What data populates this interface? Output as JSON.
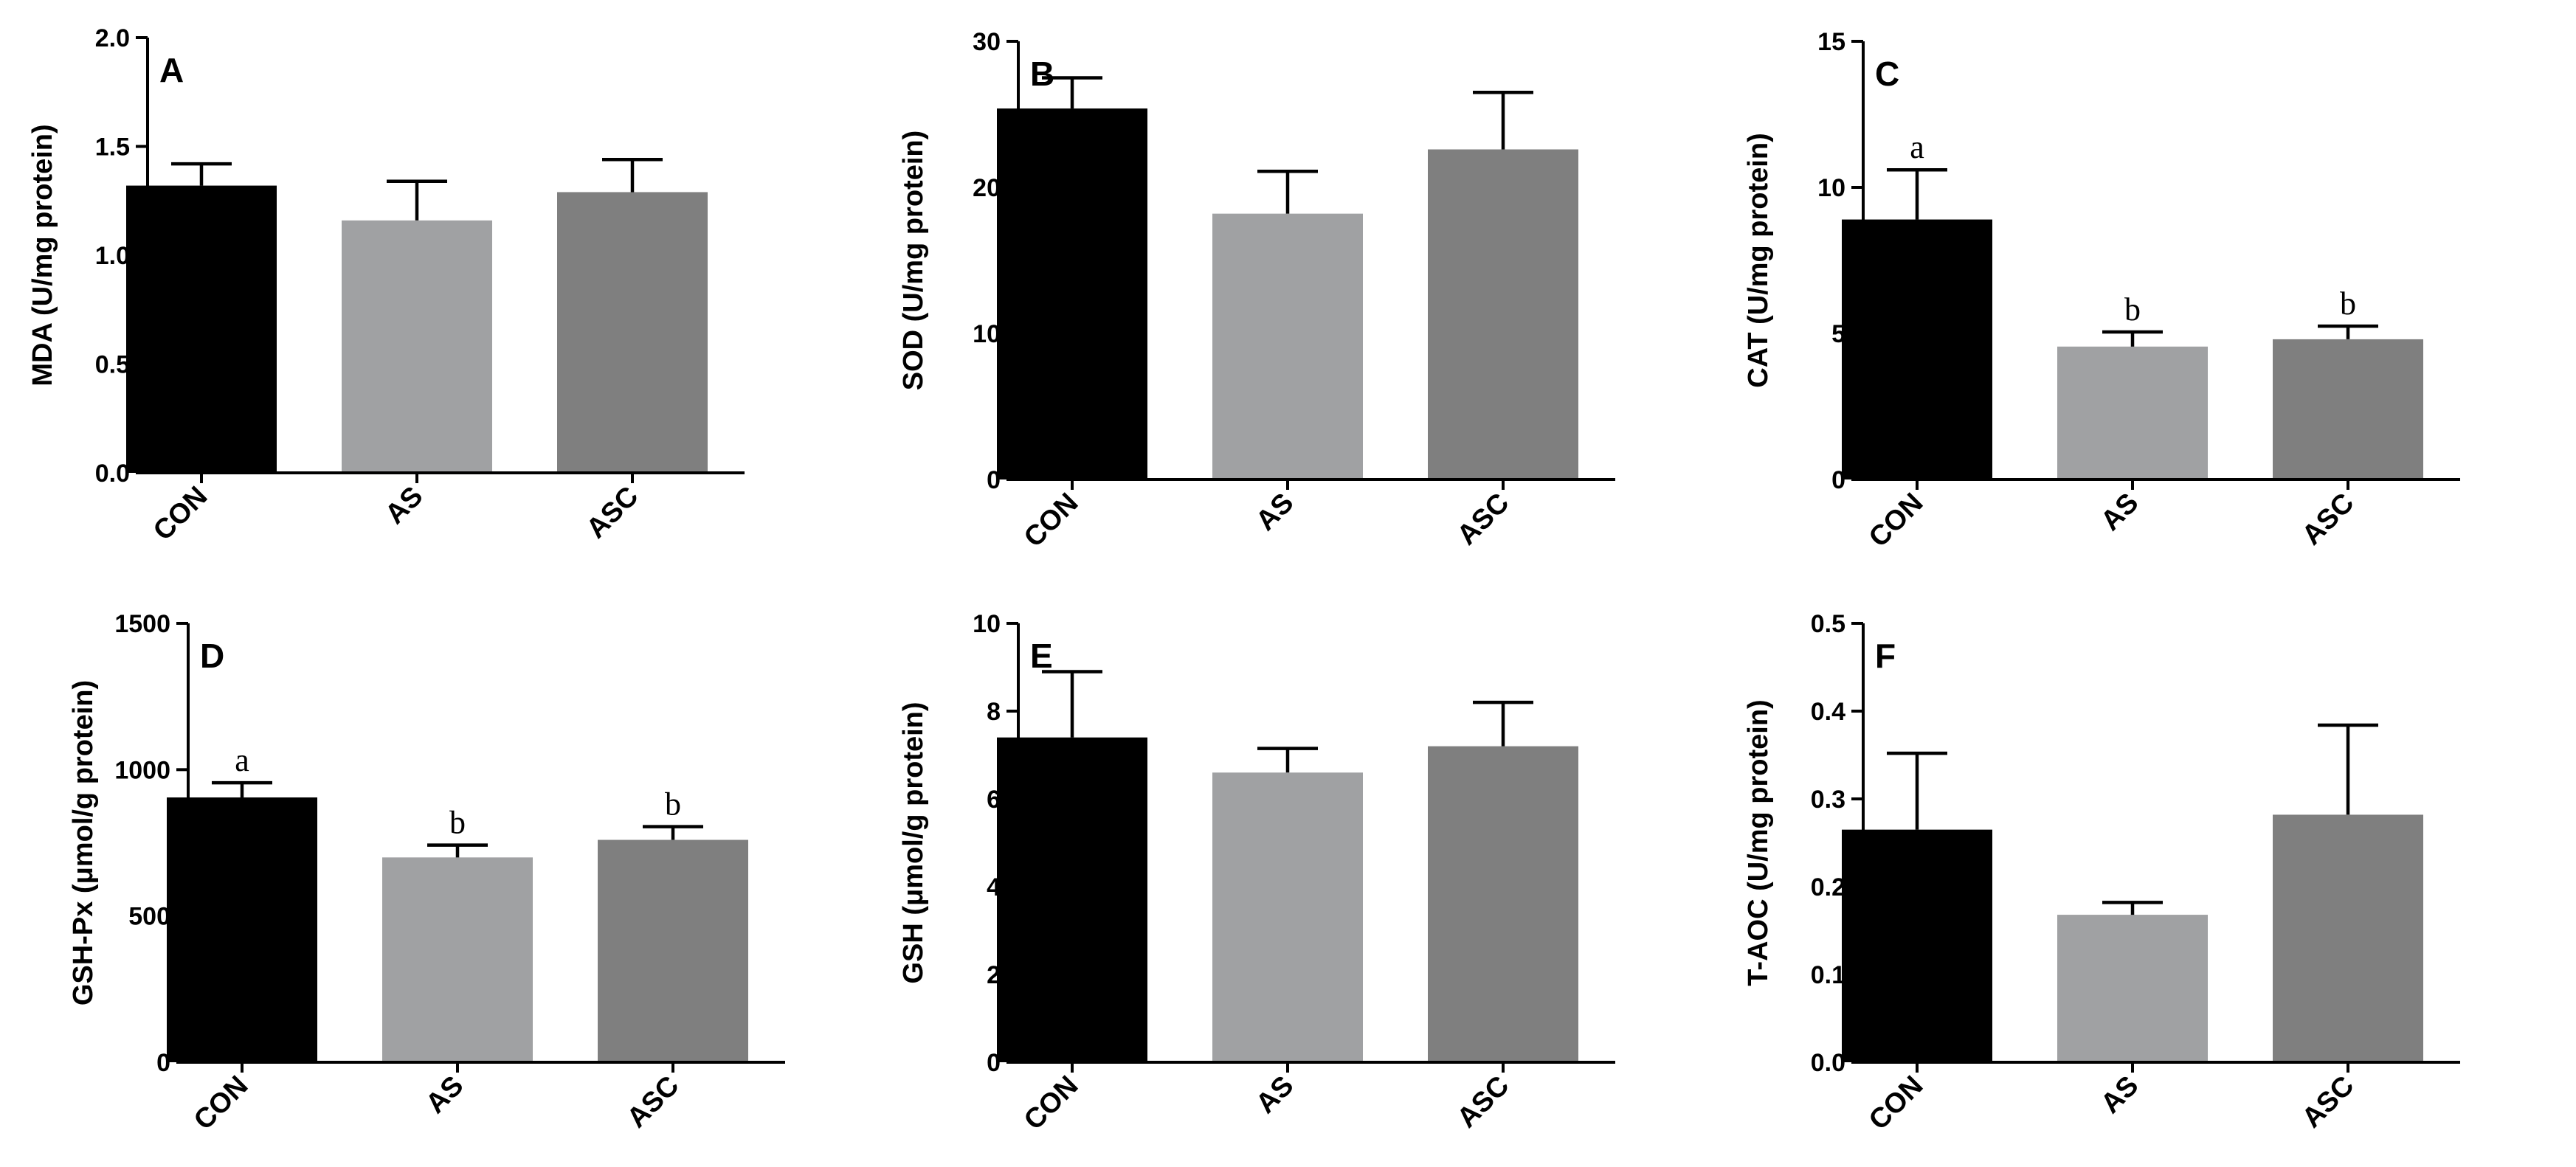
{
  "chart_data": [
    {
      "type": "bar",
      "panel_letter": "A",
      "ylabel": "MDA (U/mg protein)",
      "categories": [
        "CON",
        "AS",
        "ASC"
      ],
      "values": [
        1.32,
        1.16,
        1.29
      ],
      "errors": [
        0.1,
        0.18,
        0.15
      ],
      "ylim": [
        0,
        2.0
      ],
      "yticks": [
        0.0,
        0.5,
        1.0,
        1.5,
        2.0
      ],
      "ytick_labels": [
        "0.0",
        "0.5",
        "1.0",
        "1.5",
        "2.0"
      ],
      "bar_colors": [
        "#000000",
        "#a0a1a3",
        "#7f7f7f"
      ],
      "sig_labels": [
        "",
        "",
        ""
      ]
    },
    {
      "type": "bar",
      "panel_letter": "B",
      "ylabel": "SOD (U/mg protein)",
      "categories": [
        "CON",
        "AS",
        "ASC"
      ],
      "values": [
        25.4,
        18.2,
        22.6
      ],
      "errors": [
        2.1,
        2.9,
        3.9
      ],
      "ylim": [
        0,
        30
      ],
      "yticks": [
        0,
        10,
        20,
        30
      ],
      "ytick_labels": [
        "0",
        "10",
        "20",
        "30"
      ],
      "bar_colors": [
        "#000000",
        "#a0a1a3",
        "#7f7f7f"
      ],
      "sig_labels": [
        "",
        "",
        ""
      ]
    },
    {
      "type": "bar",
      "panel_letter": "C",
      "ylabel": "CAT (U/mg protein)",
      "categories": [
        "CON",
        "AS",
        "ASC"
      ],
      "values": [
        8.9,
        4.55,
        4.8
      ],
      "errors": [
        1.7,
        0.5,
        0.45
      ],
      "ylim": [
        0,
        15
      ],
      "yticks": [
        0,
        5,
        10,
        15
      ],
      "ytick_labels": [
        "0",
        "5",
        "10",
        "15"
      ],
      "bar_colors": [
        "#000000",
        "#a0a1a3",
        "#7f7f7f"
      ],
      "sig_labels": [
        "a",
        "b",
        "b"
      ]
    },
    {
      "type": "bar",
      "panel_letter": "D",
      "ylabel": "GSH-Px (μmol/g protein)",
      "categories": [
        "CON",
        "AS",
        "ASC"
      ],
      "values": [
        905,
        700,
        760
      ],
      "errors": [
        50,
        42,
        45
      ],
      "ylim": [
        0,
        1500
      ],
      "yticks": [
        0,
        500,
        1000,
        1500
      ],
      "ytick_labels": [
        "0",
        "500",
        "1000",
        "1500"
      ],
      "bar_colors": [
        "#000000",
        "#a0a1a3",
        "#7f7f7f"
      ],
      "sig_labels": [
        "a",
        "b",
        "b"
      ]
    },
    {
      "type": "bar",
      "panel_letter": "E",
      "ylabel": "GSH (μmol/g protein)",
      "categories": [
        "CON",
        "AS",
        "ASC"
      ],
      "values": [
        7.4,
        6.6,
        7.2
      ],
      "errors": [
        1.5,
        0.55,
        1.0
      ],
      "ylim": [
        0,
        10
      ],
      "yticks": [
        0,
        2,
        4,
        6,
        8,
        10
      ],
      "ytick_labels": [
        "0",
        "2",
        "4",
        "6",
        "8",
        "10"
      ],
      "bar_colors": [
        "#000000",
        "#a0a1a3",
        "#7f7f7f"
      ],
      "sig_labels": [
        "",
        "",
        ""
      ]
    },
    {
      "type": "bar",
      "panel_letter": "F",
      "ylabel": "T-AOC (U/mg protein)",
      "categories": [
        "CON",
        "AS",
        "ASC"
      ],
      "values": [
        0.265,
        0.168,
        0.282
      ],
      "errors": [
        0.087,
        0.014,
        0.102
      ],
      "ylim": [
        0,
        0.5
      ],
      "yticks": [
        0.0,
        0.1,
        0.2,
        0.3,
        0.4,
        0.5
      ],
      "ytick_labels": [
        "0.0",
        "0.1",
        "0.2",
        "0.3",
        "0.4",
        "0.5"
      ],
      "bar_colors": [
        "#000000",
        "#a0a1a3",
        "#7f7f7f"
      ],
      "sig_labels": [
        "",
        "",
        ""
      ]
    }
  ]
}
